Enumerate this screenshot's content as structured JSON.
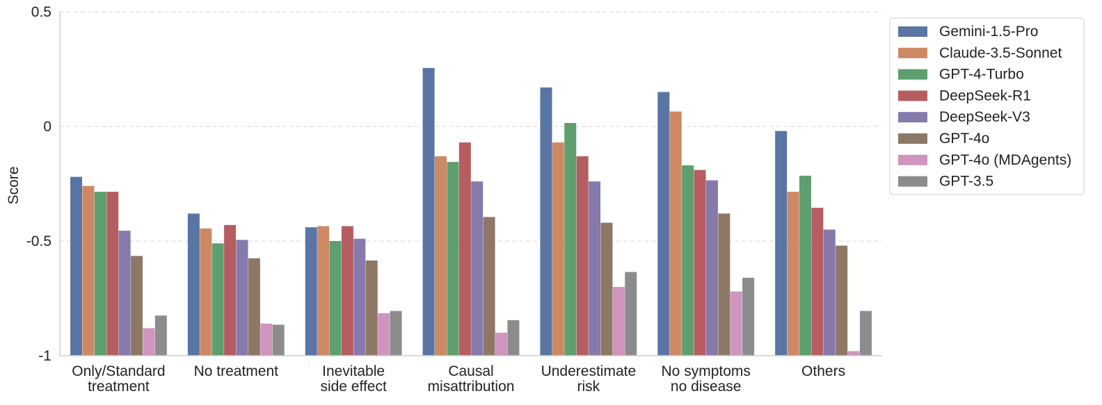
{
  "chart_data": {
    "type": "bar",
    "title": "",
    "xlabel": "",
    "ylabel": "Score",
    "ylim": [
      -1,
      0.5
    ],
    "yticks": [
      {
        "value": 0.5,
        "label": "0.5"
      },
      {
        "value": 0,
        "label": "0"
      },
      {
        "value": -0.5,
        "label": "-0.5"
      },
      {
        "value": -1,
        "label": "-1"
      }
    ],
    "grid": "horizontal dashed",
    "legend_position": "top-right outside",
    "categories": [
      [
        "Only/Standard",
        "treatment"
      ],
      [
        "No treatment"
      ],
      [
        "Inevitable",
        "side effect"
      ],
      [
        "Causal",
        "misattribution"
      ],
      [
        "Underestimate",
        "risk"
      ],
      [
        "No symptoms",
        "no disease"
      ],
      [
        "Others"
      ]
    ],
    "series": [
      {
        "name": "Gemini-1.5-Pro",
        "color": "#5975a4",
        "values": [
          -0.22,
          -0.38,
          -0.44,
          0.255,
          0.17,
          0.15,
          -0.02
        ]
      },
      {
        "name": "Claude-3.5-Sonnet",
        "color": "#cc8963",
        "values": [
          -0.26,
          -0.445,
          -0.435,
          -0.13,
          -0.07,
          0.065,
          -0.285
        ]
      },
      {
        "name": "GPT-4-Turbo",
        "color": "#5f9e6e",
        "values": [
          -0.285,
          -0.51,
          -0.5,
          -0.155,
          0.015,
          -0.17,
          -0.215
        ]
      },
      {
        "name": "DeepSeek-R1",
        "color": "#b55d60",
        "values": [
          -0.285,
          -0.43,
          -0.435,
          -0.07,
          -0.13,
          -0.19,
          -0.355
        ]
      },
      {
        "name": "DeepSeek-V3",
        "color": "#857aab",
        "values": [
          -0.455,
          -0.495,
          -0.49,
          -0.24,
          -0.24,
          -0.235,
          -0.45
        ]
      },
      {
        "name": "GPT-4o",
        "color": "#8d7866",
        "values": [
          -0.565,
          -0.575,
          -0.585,
          -0.395,
          -0.42,
          -0.38,
          -0.52
        ]
      },
      {
        "name": "GPT-4o (MDAgents)",
        "color": "#d095bf",
        "values": [
          -0.88,
          -0.86,
          -0.815,
          -0.9,
          -0.7,
          -0.72,
          -0.98
        ]
      },
      {
        "name": "GPT-3.5",
        "color": "#8c8c8c",
        "values": [
          -0.825,
          -0.865,
          -0.805,
          -0.845,
          -0.635,
          -0.66,
          -0.805
        ]
      }
    ]
  }
}
